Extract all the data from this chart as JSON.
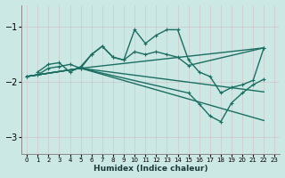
{
  "xlabel": "Humidex (Indice chaleur)",
  "xlim": [
    -0.5,
    23.5
  ],
  "ylim": [
    -3.3,
    -0.6
  ],
  "yticks": [
    -3,
    -2,
    -1
  ],
  "xticks": [
    0,
    1,
    2,
    3,
    4,
    5,
    6,
    7,
    8,
    9,
    10,
    11,
    12,
    13,
    14,
    15,
    16,
    17,
    18,
    19,
    20,
    21,
    22,
    23
  ],
  "bg_color": "#cce8e4",
  "grid_color": "#b8d8d4",
  "line_color": "#1a6e62",
  "lines": [
    {
      "x": [
        0,
        1,
        2,
        3,
        4,
        5,
        6,
        7,
        8,
        9,
        10,
        11,
        12,
        13,
        14,
        15,
        16,
        17,
        18,
        19,
        20,
        21,
        22
      ],
      "y": [
        -1.9,
        -1.87,
        -1.75,
        -1.72,
        -1.68,
        -1.75,
        -1.5,
        -1.35,
        -1.55,
        -1.6,
        -1.05,
        -1.3,
        -1.15,
        -1.05,
        -1.05,
        -1.6,
        -1.82,
        -1.9,
        -2.2,
        -2.1,
        -2.05,
        -1.97,
        -1.38
      ],
      "marker": true
    },
    {
      "x": [
        0,
        5,
        22
      ],
      "y": [
        -1.9,
        -1.75,
        -1.38
      ],
      "marker": false
    },
    {
      "x": [
        0,
        5,
        22
      ],
      "y": [
        -1.9,
        -1.75,
        -2.18
      ],
      "marker": false
    },
    {
      "x": [
        0,
        5,
        22
      ],
      "y": [
        -1.9,
        -1.75,
        -2.7
      ],
      "marker": false
    },
    {
      "x": [
        1,
        2,
        3,
        4,
        5,
        6,
        7,
        8,
        9,
        10,
        11,
        12,
        13,
        14,
        15,
        22
      ],
      "y": [
        -1.82,
        -1.68,
        -1.65,
        -1.82,
        -1.72,
        -1.5,
        -1.35,
        -1.55,
        -1.6,
        -1.45,
        -1.5,
        -1.45,
        -1.5,
        -1.55,
        -1.7,
        -1.38
      ],
      "marker": true
    },
    {
      "comment": "lower right V shape: from (5,-1.75) going to (15,-2.2),(16,-2.4),(17,-2.6),(18,-2.72),(19,-2.38),(20,-2.2),(21,-2.05),(22,-1.95)",
      "x": [
        0,
        5,
        15,
        16,
        17,
        18,
        19,
        20,
        21,
        22
      ],
      "y": [
        -1.9,
        -1.75,
        -2.2,
        -2.4,
        -2.62,
        -2.72,
        -2.38,
        -2.2,
        -2.05,
        -1.95
      ],
      "marker": true
    }
  ],
  "markersize": 3.5,
  "linewidth": 1.0
}
